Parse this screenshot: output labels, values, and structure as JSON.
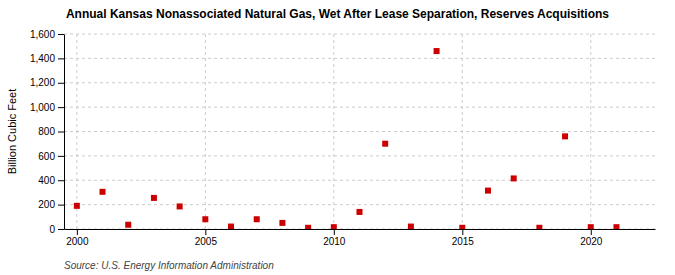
{
  "chart_data": {
    "type": "scatter",
    "title": "Annual Kansas Nonassociated Natural Gas, Wet After Lease Separation, Reserves Acquisitions",
    "ylabel": "Billion Cubic Feet",
    "source": "Source: U.S. Energy Information Administration",
    "x": [
      2000,
      2001,
      2002,
      2003,
      2004,
      2005,
      2006,
      2007,
      2008,
      2009,
      2010,
      2011,
      2012,
      2013,
      2014,
      2015,
      2016,
      2017,
      2018,
      2019,
      2020,
      2021
    ],
    "values": [
      190,
      305,
      35,
      255,
      185,
      80,
      20,
      80,
      50,
      10,
      15,
      140,
      700,
      20,
      1460,
      10,
      315,
      415,
      10,
      760,
      15,
      15
    ],
    "color": "#cc0000",
    "marker": "square",
    "xlim": [
      1999.5,
      2022.5
    ],
    "xticks": [
      2000,
      2005,
      2010,
      2015,
      2020
    ],
    "ylim": [
      0,
      1600
    ],
    "yticks": [
      0,
      200,
      400,
      600,
      800,
      {
        "value": 1000,
        "label": "1,000"
      },
      {
        "value": 1200,
        "label": "1,200"
      },
      {
        "value": 1400,
        "label": "1,400"
      },
      {
        "value": 1600,
        "label": "1,600"
      }
    ],
    "grid": true
  }
}
